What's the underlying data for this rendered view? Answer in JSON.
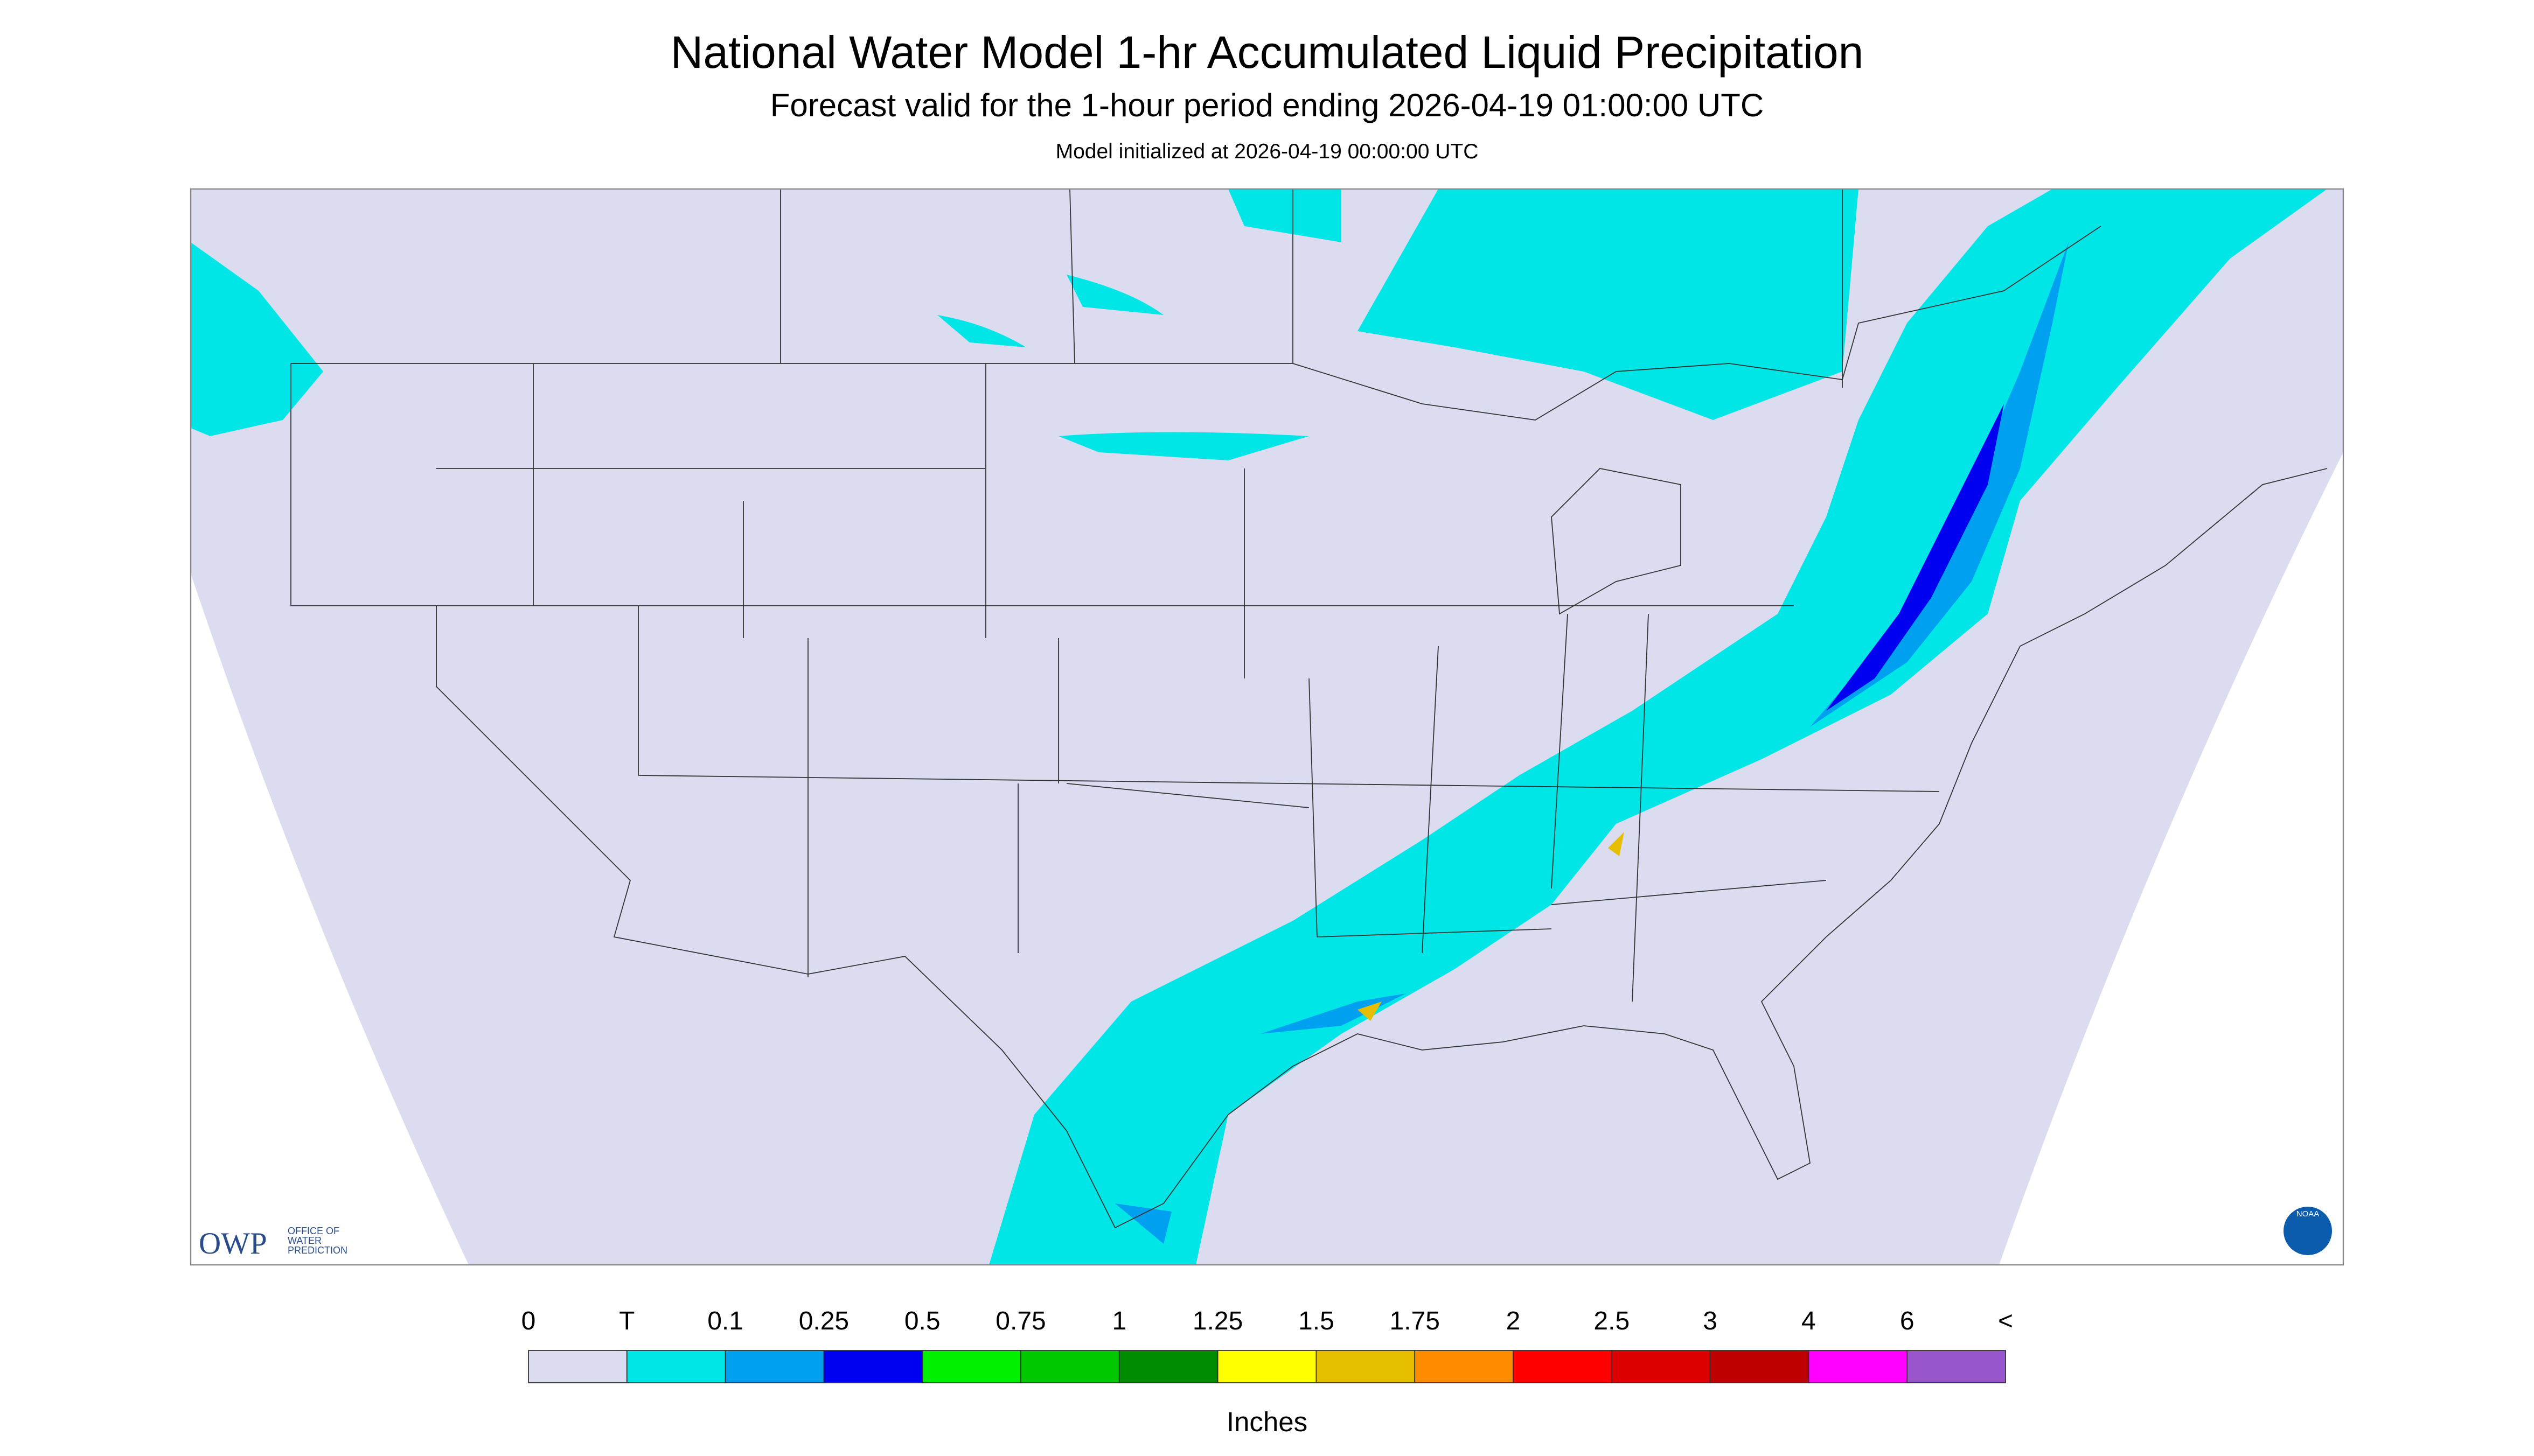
{
  "header": {
    "title": "National Water Model 1-hr Accumulated Liquid Precipitation",
    "subtitle": "Forecast valid for the 1-hour period ending 2026-04-19 01:00:00 UTC",
    "initialized": "Model initialized at 2026-04-19 00:00:00 UTC"
  },
  "logos": {
    "owp": "OWP",
    "owp_name": [
      "OFFICE OF",
      "WATER",
      "PREDICTION"
    ],
    "noaa": "NOAA"
  },
  "legend": {
    "labels": [
      "0",
      "T",
      "0.1",
      "0.25",
      "0.5",
      "0.75",
      "1",
      "1.25",
      "1.5",
      "1.75",
      "2",
      "2.5",
      "3",
      "4",
      "6",
      "<"
    ],
    "colors": [
      "#dcdcf0",
      "#00e6e6",
      "#00a0f0",
      "#0000f0",
      "#00f000",
      "#00c800",
      "#008c00",
      "#ffff00",
      "#e6be00",
      "#ff8c00",
      "#ff0000",
      "#dc0000",
      "#be0000",
      "#ff00ff",
      "#9955cc"
    ],
    "unit": "Inches"
  }
}
